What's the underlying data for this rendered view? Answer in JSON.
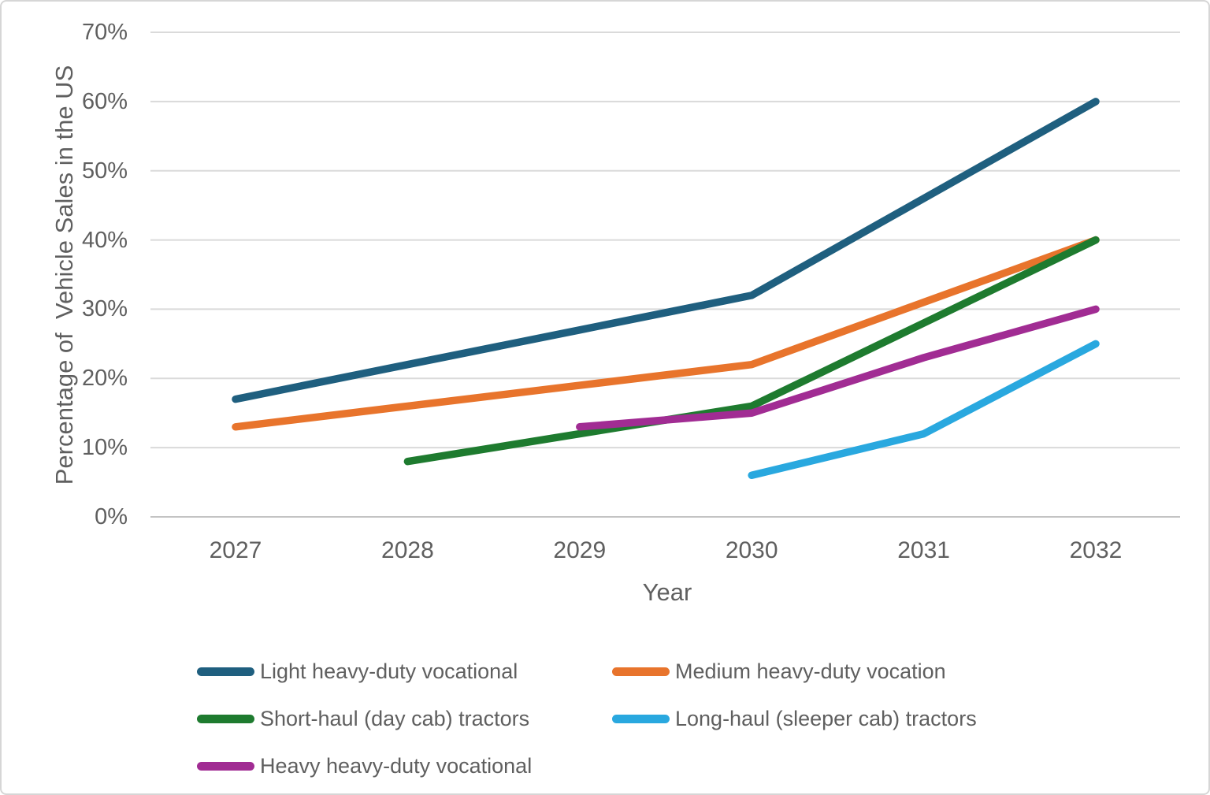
{
  "chart_data": {
    "type": "line",
    "title": "",
    "xlabel": "Year",
    "ylabel": "Percentage of  Vehicle Sales in the US",
    "x_categories": [
      "2027",
      "2028",
      "2029",
      "2030",
      "2031",
      "2032"
    ],
    "y_tick_labels": [
      "0%",
      "10%",
      "20%",
      "30%",
      "40%",
      "50%",
      "60%",
      "70%"
    ],
    "ylim": [
      0,
      70
    ],
    "grid": true,
    "legend_position": "bottom",
    "colors": {
      "gridline": "#dadada",
      "axis_line": "#c3c3c3",
      "text": "#5f5f5f"
    },
    "series": [
      {
        "name": "Light heavy-duty vocational",
        "color": "#1f5f7f",
        "values": [
          17,
          22,
          27,
          32,
          46,
          60
        ]
      },
      {
        "name": "Medium heavy-duty vocation",
        "color": "#e8742c",
        "values": [
          13,
          16,
          19,
          22,
          31,
          40
        ]
      },
      {
        "name": "Short-haul (day cab) tractors",
        "color": "#1e7b2f",
        "values": [
          null,
          8,
          12,
          16,
          28,
          40
        ]
      },
      {
        "name": "Long-haul (sleeper cab) tractors",
        "color": "#29a8df",
        "values": [
          null,
          null,
          null,
          6,
          12,
          25
        ]
      },
      {
        "name": "Heavy heavy-duty vocational",
        "color": "#a12c93",
        "values": [
          null,
          null,
          13,
          15,
          23,
          30
        ]
      }
    ]
  }
}
